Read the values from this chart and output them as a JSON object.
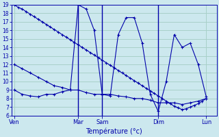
{
  "xlabel": "Température (°c)",
  "background_color": "#cce8ee",
  "grid_color": "#a8d0c8",
  "line_color": "#0000aa",
  "ylim": [
    6,
    19
  ],
  "yticks": [
    6,
    7,
    8,
    9,
    10,
    11,
    12,
    13,
    14,
    15,
    16,
    17,
    18,
    19
  ],
  "day_labels": [
    "Ven",
    "Mar",
    "Sam",
    "Dim",
    "Lun"
  ],
  "day_positions": [
    0,
    8,
    11,
    18,
    24
  ],
  "vline_positions": [
    8,
    11,
    18
  ],
  "xlim": [
    -0.3,
    25.3
  ],
  "line1_x": [
    0,
    0.5,
    1,
    1.5,
    2,
    2.5,
    3,
    3.5,
    4,
    4.5,
    5,
    5.5,
    6,
    6.5,
    7,
    7.5,
    8,
    8.5,
    9,
    9.5,
    10,
    10.5,
    11,
    11.5,
    12,
    12.5,
    13,
    13.5,
    14,
    14.5,
    15,
    15.5,
    16,
    16.5,
    17,
    17.5,
    18,
    18.5,
    19,
    19.5,
    20,
    20.5,
    21,
    21.5,
    22,
    22.5,
    23,
    23.5,
    24
  ],
  "line1_y": [
    19,
    18.7,
    18.5,
    18.2,
    17.9,
    17.6,
    17.3,
    17.0,
    16.7,
    16.4,
    16.1,
    15.8,
    15.5,
    15.2,
    14.9,
    14.6,
    14.3,
    14.0,
    13.7,
    13.4,
    13.1,
    12.8,
    12.5,
    12.2,
    11.9,
    11.6,
    11.3,
    11.0,
    10.7,
    10.4,
    10.1,
    9.8,
    9.5,
    9.2,
    8.9,
    8.6,
    8.3,
    8.0,
    7.7,
    7.4,
    7.1,
    6.9,
    6.7,
    6.8,
    7.0,
    7.2,
    7.4,
    7.7,
    8.0
  ],
  "line2_x": [
    0,
    1,
    2,
    3,
    4,
    5,
    6,
    7,
    8,
    9,
    10,
    11,
    12,
    13,
    14,
    15,
    16,
    17,
    18,
    19,
    20,
    21,
    22,
    23,
    24
  ],
  "line2_y": [
    12,
    11.5,
    11,
    10.5,
    10,
    9.5,
    9.3,
    9.0,
    19,
    18.5,
    16,
    8.5,
    8.3,
    15.5,
    17.5,
    17.5,
    14.5,
    8.5,
    6.5,
    10.0,
    15.5,
    14.0,
    14.5,
    12.0,
    8.2
  ],
  "line3_x": [
    0,
    1,
    2,
    3,
    4,
    5,
    6,
    7,
    8,
    9,
    10,
    11,
    12,
    13,
    14,
    15,
    16,
    17,
    18,
    19,
    20,
    21,
    22,
    23,
    24
  ],
  "line3_y": [
    9,
    8.5,
    8.3,
    8.2,
    8.5,
    8.5,
    8.8,
    9.0,
    9.0,
    8.7,
    8.5,
    8.5,
    8.5,
    8.3,
    8.2,
    8.0,
    8.0,
    7.8,
    7.5,
    7.5,
    7.5,
    7.3,
    7.5,
    7.7,
    8.0
  ]
}
